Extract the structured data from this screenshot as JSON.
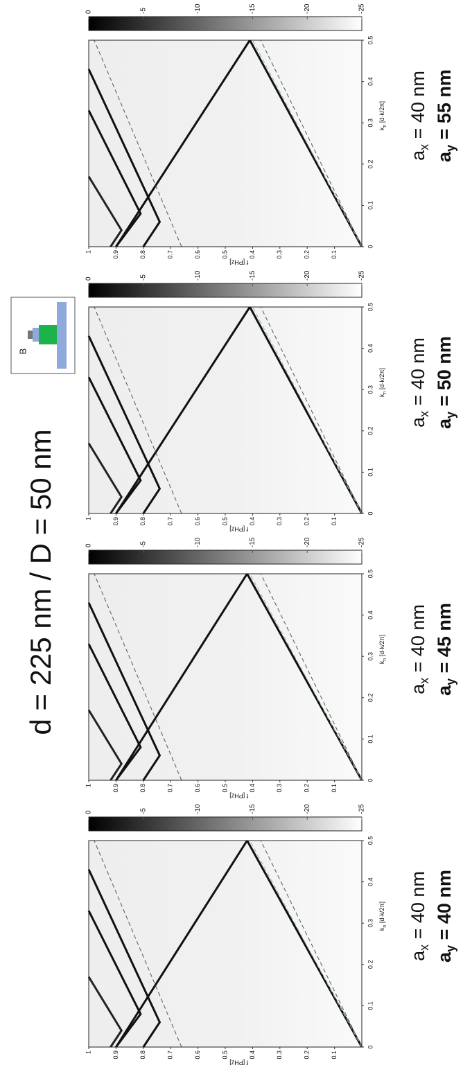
{
  "title": "d = 225 nm / D = 50 nm",
  "inset_label": "B",
  "chart_data": [
    {
      "type": "line",
      "caption": [
        [
          "a",
          "x",
          " = 40 nm"
        ],
        [
          "a",
          "y",
          " = 40 nm"
        ]
      ],
      "xlabel": [
        "k",
        "n",
        " [d·k/2π]"
      ],
      "ylabel": "f [PHz]",
      "xlim": [
        0,
        0.5
      ],
      "ylim": [
        0,
        1
      ],
      "xticks": [
        0,
        0.1,
        0.2,
        0.3,
        0.4,
        0.5
      ],
      "yticks": [
        0.1,
        0.2,
        0.3,
        0.4,
        0.5,
        0.6,
        0.7,
        0.8,
        0.9,
        1
      ],
      "colorbar": {
        "lim": [
          0,
          -25
        ],
        "ticks": [
          0,
          -5,
          -10,
          -15,
          -20,
          -25
        ],
        "colors": [
          "#000000",
          "#ffffff"
        ]
      },
      "series": [
        {
          "color": "#111111",
          "x": [
            0,
            0.5
          ],
          "values": [
            0,
            0.42
          ]
        },
        {
          "color": "#111111",
          "x": [
            0,
            0.5
          ],
          "values": [
            0.9,
            0.42
          ]
        },
        {
          "color": "#111111",
          "x": [
            0,
            0.06,
            0.43
          ],
          "values": [
            0.8,
            0.74,
            1
          ]
        },
        {
          "color": "#111111",
          "x": [
            0,
            0.08,
            0.33
          ],
          "values": [
            0.9,
            0.81,
            1
          ]
        },
        {
          "color": "#222222",
          "x": [
            0,
            0.04,
            0.17
          ],
          "values": [
            0.92,
            0.88,
            1
          ]
        },
        {
          "color": "#555555",
          "dash": true,
          "x": [
            0,
            0.5
          ],
          "values": [
            0,
            0.37
          ]
        },
        {
          "color": "#555555",
          "dash": true,
          "x": [
            0,
            0.5
          ],
          "values": [
            0.66,
            0.98
          ]
        },
        {
          "color": "#8fbf8f",
          "dash": true,
          "x": [
            0,
            0.5
          ],
          "values": [
            0,
            0.41
          ]
        }
      ]
    },
    {
      "type": "line",
      "caption": [
        [
          "a",
          "x",
          " = 40 nm"
        ],
        [
          "a",
          "y",
          " = 45 nm"
        ]
      ],
      "xlabel": [
        "k",
        "n",
        " [d·k/2π]"
      ],
      "ylabel": "f [PHz]",
      "xlim": [
        0,
        0.5
      ],
      "ylim": [
        0,
        1
      ],
      "xticks": [
        0,
        0.1,
        0.2,
        0.3,
        0.4,
        0.5
      ],
      "yticks": [
        0.1,
        0.2,
        0.3,
        0.4,
        0.5,
        0.6,
        0.7,
        0.8,
        0.9,
        1
      ],
      "colorbar": {
        "lim": [
          0,
          -25
        ],
        "ticks": [
          0,
          -5,
          -10,
          -15,
          -20,
          -25
        ],
        "colors": [
          "#000000",
          "#ffffff"
        ]
      },
      "series": [
        {
          "color": "#111111",
          "x": [
            0,
            0.5
          ],
          "values": [
            0,
            0.42
          ]
        },
        {
          "color": "#111111",
          "x": [
            0,
            0.5
          ],
          "values": [
            0.9,
            0.42
          ]
        },
        {
          "color": "#111111",
          "x": [
            0,
            0.06,
            0.43
          ],
          "values": [
            0.8,
            0.74,
            1
          ]
        },
        {
          "color": "#111111",
          "x": [
            0,
            0.08,
            0.33
          ],
          "values": [
            0.9,
            0.81,
            1
          ]
        },
        {
          "color": "#222222",
          "x": [
            0,
            0.04,
            0.17
          ],
          "values": [
            0.92,
            0.88,
            1
          ]
        },
        {
          "color": "#555555",
          "dash": true,
          "x": [
            0,
            0.5
          ],
          "values": [
            0,
            0.37
          ]
        },
        {
          "color": "#555555",
          "dash": true,
          "x": [
            0,
            0.5
          ],
          "values": [
            0.66,
            0.98
          ]
        },
        {
          "color": "#8fbf8f",
          "dash": true,
          "x": [
            0,
            0.5
          ],
          "values": [
            0,
            0.41
          ]
        }
      ]
    },
    {
      "type": "line",
      "caption": [
        [
          "a",
          "x",
          " = 40 nm"
        ],
        [
          "a",
          "y",
          " = 50 nm"
        ]
      ],
      "xlabel": [
        "k",
        "n",
        " [d·k/2π]"
      ],
      "ylabel": "f [PHz]",
      "xlim": [
        0,
        0.5
      ],
      "ylim": [
        0,
        1
      ],
      "xticks": [
        0,
        0.1,
        0.2,
        0.3,
        0.4,
        0.5
      ],
      "yticks": [
        0.1,
        0.2,
        0.3,
        0.4,
        0.5,
        0.6,
        0.7,
        0.8,
        0.9,
        1
      ],
      "colorbar": {
        "lim": [
          0,
          -25
        ],
        "ticks": [
          0,
          -5,
          -10,
          -15,
          -20,
          -25
        ],
        "colors": [
          "#000000",
          "#ffffff"
        ]
      },
      "series": [
        {
          "color": "#111111",
          "x": [
            0,
            0.5
          ],
          "values": [
            0,
            0.41
          ]
        },
        {
          "color": "#111111",
          "x": [
            0,
            0.5
          ],
          "values": [
            0.9,
            0.41
          ]
        },
        {
          "color": "#111111",
          "x": [
            0,
            0.06,
            0.43
          ],
          "values": [
            0.8,
            0.74,
            1
          ]
        },
        {
          "color": "#111111",
          "x": [
            0,
            0.08,
            0.33
          ],
          "values": [
            0.9,
            0.81,
            1
          ]
        },
        {
          "color": "#222222",
          "x": [
            0,
            0.04,
            0.17
          ],
          "values": [
            0.92,
            0.88,
            1
          ]
        },
        {
          "color": "#555555",
          "dash": true,
          "x": [
            0,
            0.5
          ],
          "values": [
            0,
            0.37
          ]
        },
        {
          "color": "#555555",
          "dash": true,
          "x": [
            0,
            0.5
          ],
          "values": [
            0.66,
            0.98
          ]
        },
        {
          "color": "#8fbf8f",
          "dash": true,
          "x": [
            0,
            0.5
          ],
          "values": [
            0,
            0.4
          ]
        }
      ]
    },
    {
      "type": "line",
      "caption": [
        [
          "a",
          "x",
          " = 40 nm"
        ],
        [
          "a",
          "y",
          " = 55 nm"
        ]
      ],
      "xlabel": [
        "k",
        "n",
        " [d·k/2π]"
      ],
      "ylabel": "f [PHz]",
      "xlim": [
        0,
        0.5
      ],
      "ylim": [
        0,
        1
      ],
      "xticks": [
        0,
        0.1,
        0.2,
        0.3,
        0.4,
        0.5
      ],
      "yticks": [
        0.1,
        0.2,
        0.3,
        0.4,
        0.5,
        0.6,
        0.7,
        0.8,
        0.9,
        1
      ],
      "colorbar": {
        "lim": [
          0,
          -25
        ],
        "ticks": [
          0,
          -5,
          -10,
          -15,
          -20,
          -25
        ],
        "colors": [
          "#000000",
          "#ffffff"
        ]
      },
      "series": [
        {
          "color": "#111111",
          "x": [
            0,
            0.5
          ],
          "values": [
            0,
            0.41
          ]
        },
        {
          "color": "#111111",
          "x": [
            0,
            0.5
          ],
          "values": [
            0.9,
            0.41
          ]
        },
        {
          "color": "#111111",
          "x": [
            0,
            0.06,
            0.43
          ],
          "values": [
            0.8,
            0.74,
            1
          ]
        },
        {
          "color": "#111111",
          "x": [
            0,
            0.08,
            0.33
          ],
          "values": [
            0.9,
            0.81,
            1
          ]
        },
        {
          "color": "#222222",
          "x": [
            0,
            0.04,
            0.17
          ],
          "values": [
            0.92,
            0.88,
            1
          ]
        },
        {
          "color": "#555555",
          "dash": true,
          "x": [
            0,
            0.5
          ],
          "values": [
            0,
            0.37
          ]
        },
        {
          "color": "#555555",
          "dash": true,
          "x": [
            0,
            0.5
          ],
          "values": [
            0.66,
            0.98
          ]
        },
        {
          "color": "#8fbf8f",
          "dash": true,
          "x": [
            0,
            0.5
          ],
          "values": [
            0,
            0.4
          ]
        }
      ]
    }
  ]
}
